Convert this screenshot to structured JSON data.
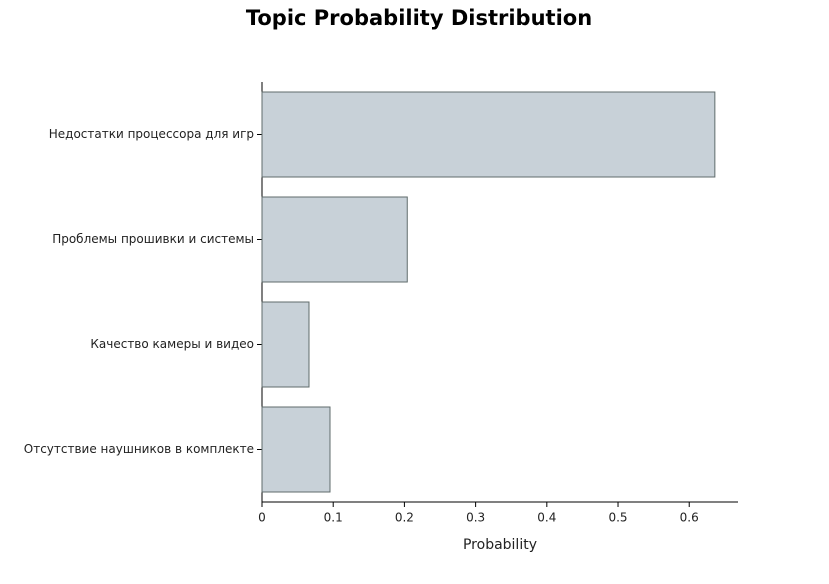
{
  "chart_data": {
    "type": "bar",
    "orientation": "horizontal",
    "title": "Topic Probability Distribution",
    "x_label": "Probability",
    "categories": [
      "Недостатки процессора для игр",
      "Проблемы прошивки и системы",
      "Качество камеры и видео",
      "Отсутствие наушников в комплекте"
    ],
    "values": [
      0.636,
      0.204,
      0.066,
      0.0955
    ],
    "color": "#c8d1d8",
    "edge_color": "#5f6b6b",
    "xlim": [
      0,
      0.6685
    ],
    "xticks": [
      0,
      0.1,
      0.2,
      0.3,
      0.4,
      0.5,
      0.6
    ]
  }
}
